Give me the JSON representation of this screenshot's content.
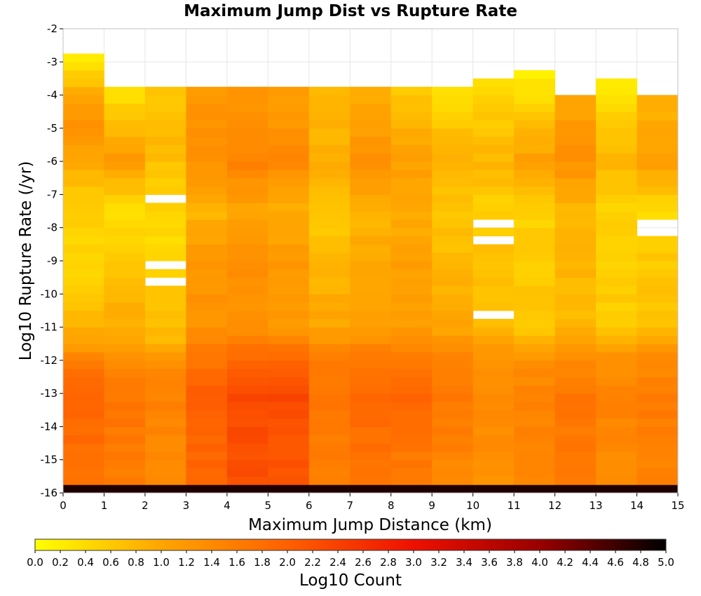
{
  "chart_data": {
    "type": "heatmap",
    "title": "Maximum Jump Dist vs Rupture Rate",
    "xlabel": "Maximum Jump Distance (km)",
    "ylabel": "Log10 Rupture Rate (/yr)",
    "colorbar_label": "Log10 Count",
    "xlim": [
      0,
      15
    ],
    "ylim": [
      -16,
      -2
    ],
    "x_ticks": [
      "0",
      "1",
      "2",
      "3",
      "4",
      "5",
      "6",
      "7",
      "8",
      "9",
      "10",
      "11",
      "12",
      "13",
      "14",
      "15"
    ],
    "y_ticks": [
      "-2",
      "-3",
      "-4",
      "-5",
      "-6",
      "-7",
      "-8",
      "-9",
      "-10",
      "-11",
      "-12",
      "-13",
      "-14",
      "-15",
      "-16"
    ],
    "colorbar_ticks": [
      "0.0",
      "0.2",
      "0.4",
      "0.6",
      "0.8",
      "1.0",
      "1.2",
      "1.4",
      "1.6",
      "1.8",
      "2.0",
      "2.2",
      "2.4",
      "2.6",
      "2.8",
      "3.0",
      "3.2",
      "3.4",
      "3.6",
      "3.8",
      "4.0",
      "4.2",
      "4.4",
      "4.6",
      "4.8",
      "5.0"
    ],
    "colorbar_range": [
      0,
      5
    ],
    "colormap": [
      "#ffff00",
      "#ffa500",
      "#ff6000",
      "#ee1000",
      "#990000",
      "#000000"
    ],
    "x_bin_width": 1,
    "y_bin_start": -16,
    "y_bin_width": 0.25,
    "bottom_row_value": 4.8,
    "column_tops": [
      -2.75,
      -3.75,
      -3.75,
      -3.75,
      -3.75,
      -3.75,
      -3.75,
      -3.75,
      -3.75,
      -3.75,
      -3.5,
      -3.25,
      -4.0,
      -3.5,
      -4.0
    ],
    "column_profiles": [
      [
        [
          -15.5,
          1.8
        ],
        [
          -12.5,
          1.9
        ],
        [
          -12,
          1.5
        ],
        [
          -11.5,
          1.0
        ],
        [
          -10,
          0.6
        ],
        [
          -9,
          0.4
        ],
        [
          -7,
          0.6
        ],
        [
          -5,
          1.3
        ],
        [
          -4,
          1.0
        ],
        [
          -3.5,
          0.6
        ],
        [
          -3,
          0.3
        ]
      ],
      [
        [
          -15.5,
          1.6
        ],
        [
          -13,
          1.7
        ],
        [
          -12,
          1.4
        ],
        [
          -11.5,
          1.0
        ],
        [
          -10,
          0.8
        ],
        [
          -9,
          0.6
        ],
        [
          -7.5,
          0.3
        ],
        [
          -6,
          1.2
        ],
        [
          -4.5,
          0.6
        ],
        [
          -4,
          0.4
        ]
      ],
      [
        [
          -15.5,
          1.4
        ],
        [
          -13,
          1.5
        ],
        [
          -12,
          1.3
        ],
        [
          -11.5,
          0.8
        ],
        [
          -10,
          0.6
        ],
        [
          -9,
          0.4
        ],
        [
          -7.5,
          0.5
        ],
        [
          -5,
          0.8
        ],
        [
          -4,
          0.6
        ]
      ],
      [
        [
          -15.5,
          1.9
        ],
        [
          -13,
          2.0
        ],
        [
          -12,
          1.7
        ],
        [
          -11,
          1.3
        ],
        [
          -9,
          1.2
        ],
        [
          -7.5,
          0.8
        ],
        [
          -6,
          1.3
        ],
        [
          -4,
          1.2
        ]
      ],
      [
        [
          -15.5,
          2.2
        ],
        [
          -13,
          2.3
        ],
        [
          -12,
          1.9
        ],
        [
          -11,
          1.3
        ],
        [
          -9,
          1.3
        ],
        [
          -7.5,
          1.0
        ],
        [
          -6,
          1.5
        ],
        [
          -4,
          1.2
        ]
      ],
      [
        [
          -15.5,
          2.1
        ],
        [
          -13,
          2.3
        ],
        [
          -12,
          1.9
        ],
        [
          -11,
          1.2
        ],
        [
          -9,
          1.2
        ],
        [
          -7.5,
          0.9
        ],
        [
          -6,
          1.4
        ],
        [
          -4,
          1.1
        ]
      ],
      [
        [
          -15.5,
          1.5
        ],
        [
          -13,
          1.7
        ],
        [
          -12,
          1.6
        ],
        [
          -11,
          1.0
        ],
        [
          -9,
          0.8
        ],
        [
          -7.5,
          0.6
        ],
        [
          -6,
          0.9
        ],
        [
          -4,
          0.8
        ]
      ],
      [
        [
          -15.5,
          1.7
        ],
        [
          -13,
          1.9
        ],
        [
          -12,
          1.7
        ],
        [
          -11,
          1.1
        ],
        [
          -9,
          1.0
        ],
        [
          -7.5,
          0.8
        ],
        [
          -6,
          1.3
        ],
        [
          -4,
          0.9
        ]
      ],
      [
        [
          -15.5,
          1.6
        ],
        [
          -13,
          1.9
        ],
        [
          -12,
          1.7
        ],
        [
          -11,
          1.1
        ],
        [
          -9,
          1.1
        ],
        [
          -7.5,
          0.9
        ],
        [
          -6,
          1.1
        ],
        [
          -4,
          0.6
        ]
      ],
      [
        [
          -15.5,
          1.4
        ],
        [
          -13,
          1.7
        ],
        [
          -12,
          1.5
        ],
        [
          -11,
          1.0
        ],
        [
          -9,
          0.8
        ],
        [
          -7.5,
          0.6
        ],
        [
          -6,
          0.9
        ],
        [
          -4,
          0.4
        ]
      ],
      [
        [
          -15.5,
          1.3
        ],
        [
          -13,
          1.4
        ],
        [
          -12,
          1.3
        ],
        [
          -11,
          0.8
        ],
        [
          -9,
          0.7
        ],
        [
          -7.5,
          0.5
        ],
        [
          -6,
          0.8
        ],
        [
          -3.5,
          0.4
        ]
      ],
      [
        [
          -15.5,
          1.4
        ],
        [
          -13,
          1.5
        ],
        [
          -12,
          1.3
        ],
        [
          -11,
          0.6
        ],
        [
          -9,
          0.6
        ],
        [
          -7.5,
          0.5
        ],
        [
          -6,
          1.1
        ],
        [
          -3.25,
          0.1
        ]
      ],
      [
        [
          -15.5,
          1.6
        ],
        [
          -13,
          1.7
        ],
        [
          -12,
          1.4
        ],
        [
          -11,
          0.8
        ],
        [
          -9,
          0.8
        ],
        [
          -7.5,
          0.8
        ],
        [
          -6,
          1.3
        ],
        [
          -4,
          1.0
        ]
      ],
      [
        [
          -15.5,
          1.4
        ],
        [
          -13,
          1.5
        ],
        [
          -12,
          1.3
        ],
        [
          -11,
          0.6
        ],
        [
          -9,
          0.5
        ],
        [
          -7.5,
          0.5
        ],
        [
          -6,
          0.8
        ],
        [
          -3.5,
          0.2
        ]
      ],
      [
        [
          -15.5,
          1.5
        ],
        [
          -13,
          1.6
        ],
        [
          -12,
          1.4
        ],
        [
          -11,
          0.7
        ],
        [
          -9,
          0.6
        ],
        [
          -7.5,
          0.4
        ],
        [
          -6,
          1.1
        ],
        [
          -4,
          0.8
        ]
      ]
    ],
    "empty_cells": [
      {
        "x": 2,
        "y": -7.0
      },
      {
        "x": 2,
        "y": -9.0
      },
      {
        "x": 2,
        "y": -9.5
      },
      {
        "x": 10,
        "y": -7.75
      },
      {
        "x": 10,
        "y": -8.25
      },
      {
        "x": 10,
        "y": -10.5
      },
      {
        "x": 14,
        "y": -7.75
      },
      {
        "x": 14,
        "y": -8.0
      }
    ]
  }
}
